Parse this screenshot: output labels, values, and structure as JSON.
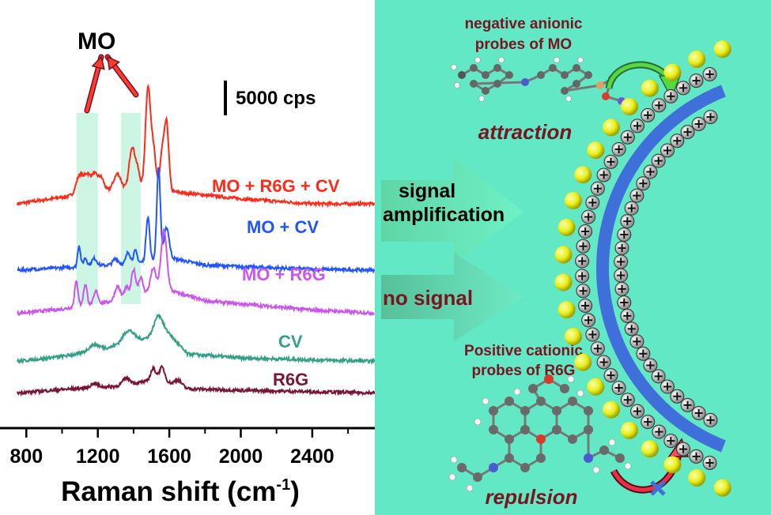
{
  "chart_data": {
    "type": "line",
    "xlabel": "Raman shift (cm",
    "xlabel_sup": "-1",
    "xlabel_close": ")",
    "xlim": [
      750,
      2750
    ],
    "xticks": [
      800,
      1200,
      1600,
      2000,
      2400
    ],
    "scale_bar_label": "5000 cps",
    "mo_label": "MO",
    "highlight_bands": [
      [
        1080,
        1200
      ],
      [
        1330,
        1440
      ]
    ],
    "series": [
      {
        "name": "MO + R6G + CV",
        "color": "#ff2a1a",
        "offset": 24000,
        "baseline": [
          [
            750,
            0
          ],
          [
            1000,
            800
          ],
          [
            1300,
            1800
          ],
          [
            1600,
            1500
          ],
          [
            2000,
            600
          ],
          [
            2400,
            0
          ],
          [
            2750,
            0
          ]
        ],
        "peaks": [
          [
            1100,
            2400,
            20
          ],
          [
            1140,
            1800,
            15
          ],
          [
            1180,
            2200,
            20
          ],
          [
            1220,
            1400,
            15
          ],
          [
            1310,
            1800,
            20
          ],
          [
            1390,
            4800,
            15
          ],
          [
            1420,
            2500,
            15
          ],
          [
            1480,
            12000,
            14
          ],
          [
            1510,
            5000,
            14
          ],
          [
            1560,
            4500,
            12
          ],
          [
            1585,
            8000,
            12
          ]
        ]
      },
      {
        "name": "MO + CV",
        "color": "#2255ff",
        "offset": 16000,
        "baseline": [
          [
            750,
            0
          ],
          [
            1100,
            400
          ],
          [
            1400,
            800
          ],
          [
            1600,
            1500
          ],
          [
            1800,
            600
          ],
          [
            2400,
            100
          ],
          [
            2750,
            0
          ]
        ],
        "peaks": [
          [
            1095,
            2600,
            8
          ],
          [
            1130,
            1000,
            10
          ],
          [
            1180,
            900,
            15
          ],
          [
            1300,
            700,
            15
          ],
          [
            1370,
            1400,
            12
          ],
          [
            1410,
            1500,
            10
          ],
          [
            1480,
            5400,
            10
          ],
          [
            1540,
            11000,
            10
          ],
          [
            1585,
            3700,
            14
          ]
        ]
      },
      {
        "name": "MO + R6G",
        "color": "#cc55ee",
        "offset": 10800,
        "baseline": [
          [
            750,
            0
          ],
          [
            1000,
            500
          ],
          [
            1300,
            1500
          ],
          [
            1560,
            3000
          ],
          [
            1800,
            1500
          ],
          [
            2400,
            400
          ],
          [
            2750,
            0
          ]
        ],
        "peaks": [
          [
            1080,
            3000,
            10
          ],
          [
            1130,
            2600,
            10
          ],
          [
            1190,
            1500,
            12
          ],
          [
            1310,
            1700,
            15
          ],
          [
            1360,
            1300,
            12
          ],
          [
            1400,
            3200,
            12
          ],
          [
            1440,
            2000,
            12
          ],
          [
            1510,
            2700,
            15
          ],
          [
            1570,
            7000,
            16
          ]
        ]
      },
      {
        "name": "CV",
        "color": "#33a088",
        "offset": 5000,
        "baseline": [
          [
            750,
            0
          ],
          [
            1000,
            600
          ],
          [
            1200,
            1300
          ],
          [
            1400,
            2500
          ],
          [
            1600,
            3300
          ],
          [
            1700,
            900
          ],
          [
            2000,
            400
          ],
          [
            2750,
            0
          ]
        ],
        "peaks": [
          [
            1180,
            800,
            30
          ],
          [
            1370,
            1400,
            30
          ],
          [
            1540,
            2500,
            25
          ]
        ]
      },
      {
        "name": "R6G",
        "color": "#7a1538",
        "offset": 1200,
        "baseline": [
          [
            750,
            0
          ],
          [
            1000,
            400
          ],
          [
            1300,
            800
          ],
          [
            1540,
            1600
          ],
          [
            1700,
            500
          ],
          [
            2000,
            300
          ],
          [
            2750,
            0
          ]
        ],
        "peaks": [
          [
            1180,
            500,
            20
          ],
          [
            1360,
            800,
            20
          ],
          [
            1510,
            1400,
            15
          ],
          [
            1560,
            1600,
            15
          ],
          [
            1650,
            700,
            20
          ]
        ]
      }
    ]
  },
  "schematic": {
    "arrow1_label_line1": "signal",
    "arrow1_label_line2": "amplification",
    "arrow2_label": "no signal",
    "anion_caption_line1": "negative anionic",
    "anion_caption_line2": "probes of MO",
    "attraction_label": "attraction",
    "cation_caption_line1": "Positive cationic",
    "cation_caption_line2": "probes of R6G",
    "repulsion_label": "repulsion",
    "colors": {
      "panel": "#62e8c5",
      "text_dark": "#7a1420",
      "band": "#3f6fd8",
      "sphere": "#e8ee18"
    }
  }
}
